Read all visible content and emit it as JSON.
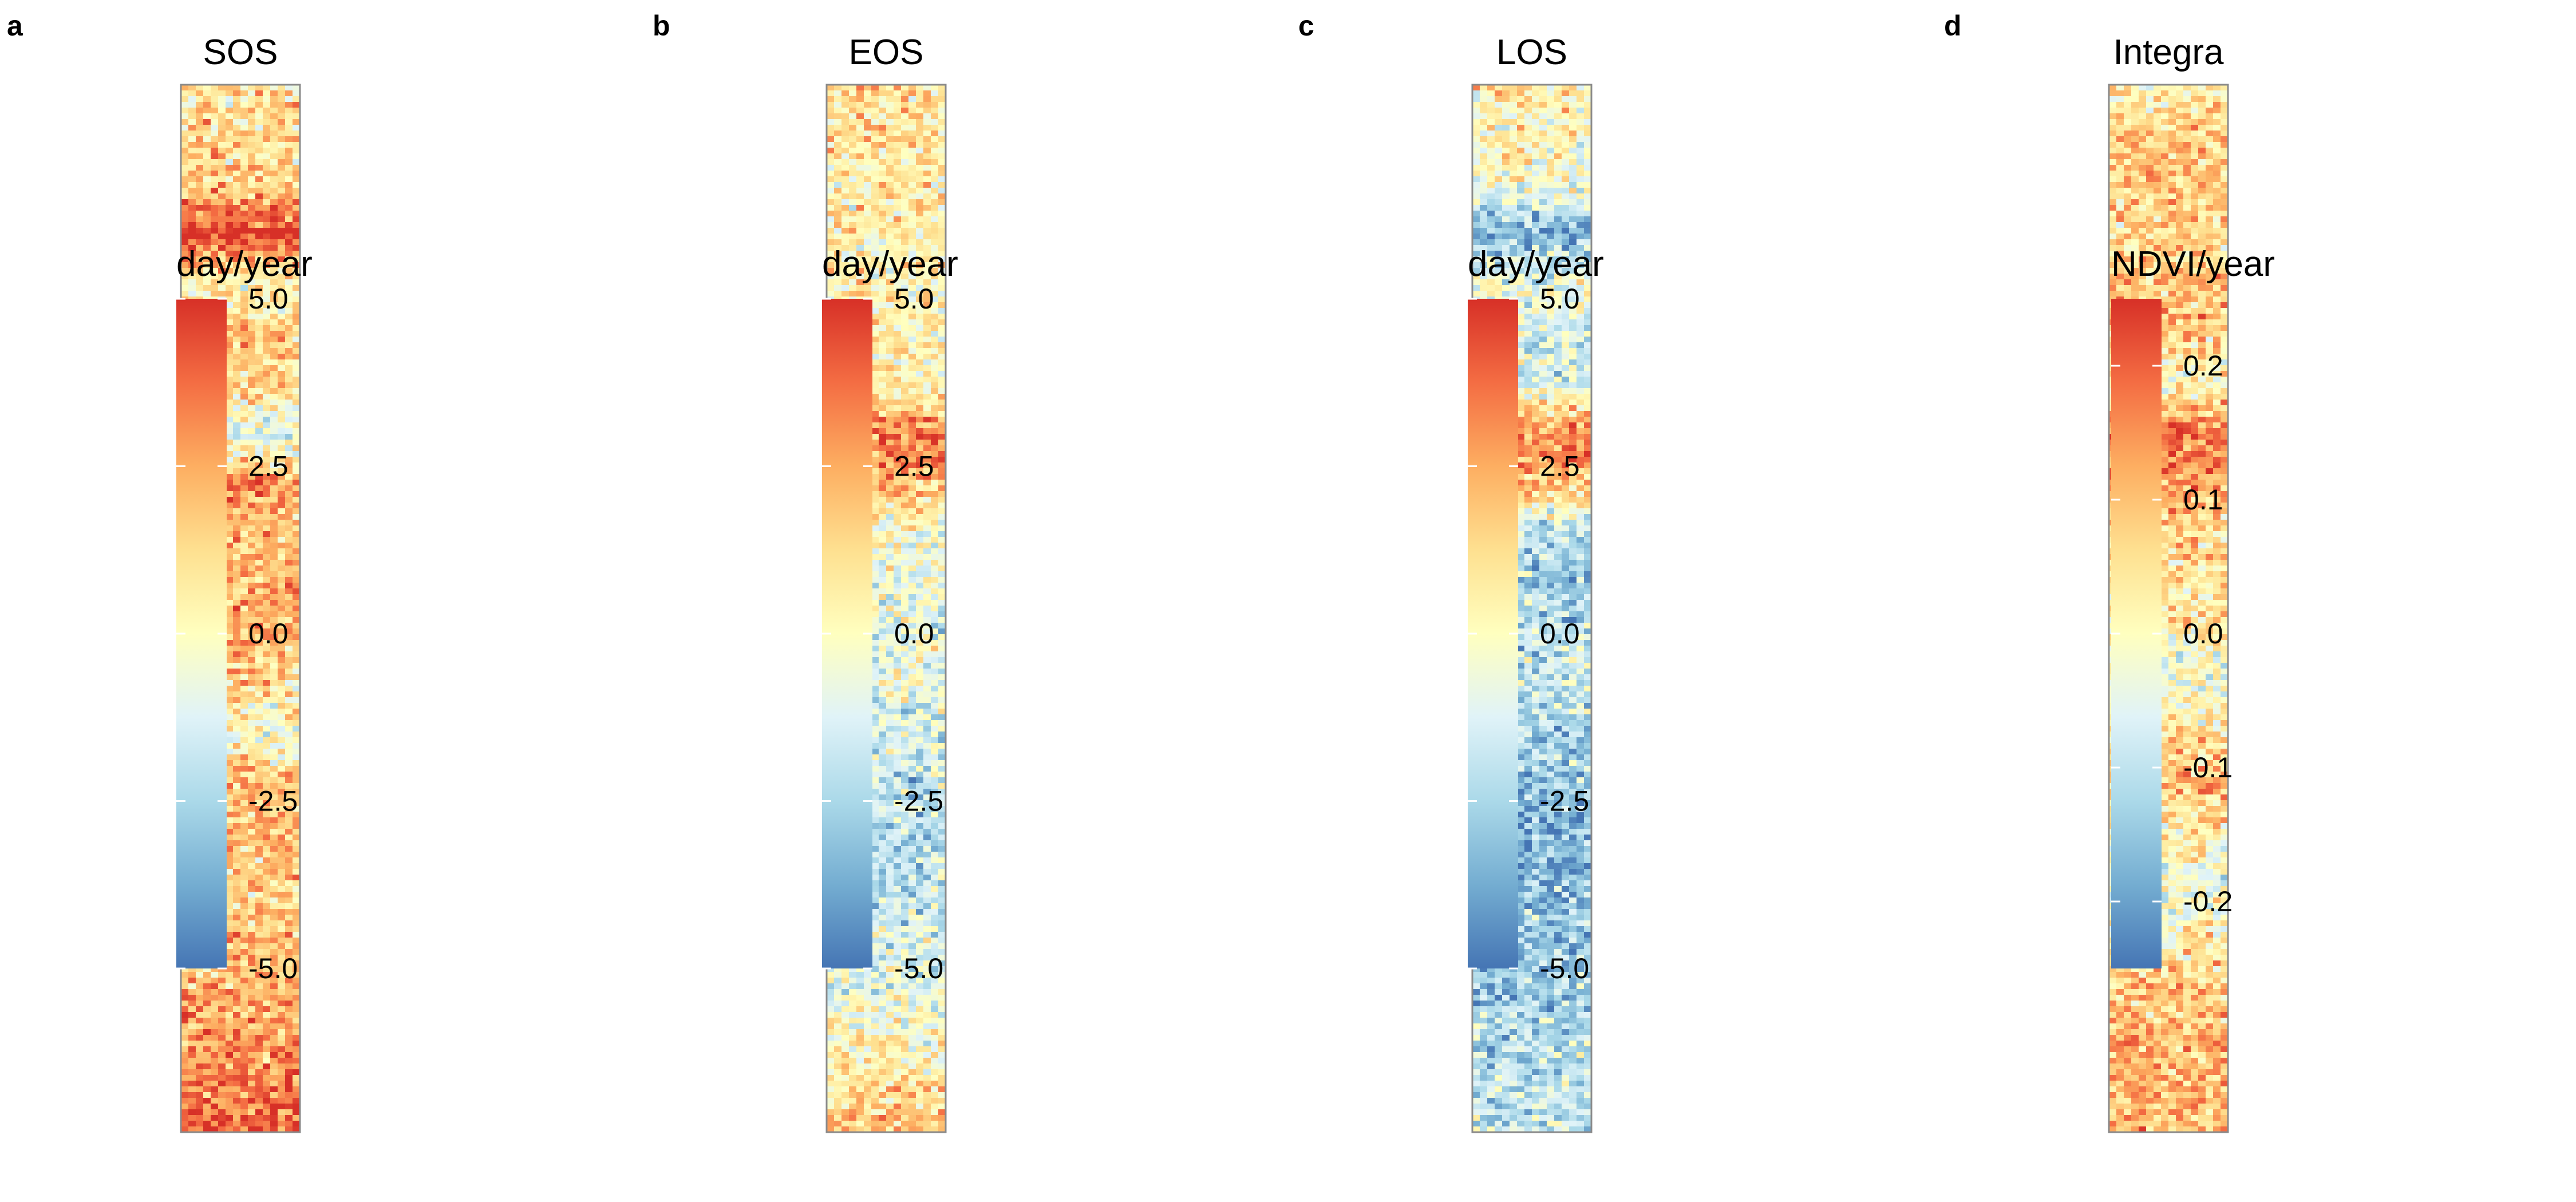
{
  "colors": {
    "diverging_scale": [
      "#4575b4",
      "#74add1",
      "#abd9e9",
      "#e0f3f8",
      "#ffffbf",
      "#fee090",
      "#fdae61",
      "#f46d43",
      "#d73027"
    ],
    "frame": "#8a8a8a",
    "text": "#000000",
    "background": "#ffffff"
  },
  "chart_data": [
    {
      "type": "heatmap",
      "panel": "a",
      "title": "SOS",
      "legend_title": "day/year",
      "legend_range": [
        -5.0,
        5.0
      ],
      "legend_ticks": [
        5.0,
        2.5,
        0.0,
        -2.5,
        -5.0
      ],
      "legend_tick_labels": [
        "5.0",
        "2.5",
        "0.0",
        "-2.5",
        "-5.0"
      ],
      "profile_from_top": [
        1.0,
        1.2,
        1.5,
        4.8,
        0.2,
        2.0,
        1.6,
        -1.5,
        3.2,
        1.8,
        2.2,
        2.4,
        1.4,
        -0.5,
        2.0,
        1.8,
        1.6,
        2.0,
        2.2,
        2.6,
        3.2,
        4.0
      ]
    },
    {
      "type": "heatmap",
      "panel": "b",
      "title": "EOS",
      "legend_title": "day/year",
      "legend_range": [
        -5.0,
        5.0
      ],
      "legend_ticks": [
        5.0,
        2.5,
        0.0,
        -2.5,
        -5.0
      ],
      "legend_tick_labels": [
        "5.0",
        "2.5",
        "0.0",
        "-2.5",
        "-5.0"
      ],
      "profile_from_top": [
        1.2,
        1.0,
        0.8,
        0.5,
        0.2,
        0.6,
        0.4,
        3.8,
        2.2,
        -0.4,
        -0.8,
        -1.0,
        -0.8,
        -1.4,
        -1.8,
        -2.4,
        -2.0,
        -1.6,
        -1.2,
        -0.2,
        1.0,
        1.8
      ]
    },
    {
      "type": "heatmap",
      "panel": "c",
      "title": "LOS",
      "legend_title": "day/year",
      "legend_range": [
        -5.0,
        5.0
      ],
      "legend_ticks": [
        5.0,
        2.5,
        0.0,
        -2.5,
        -5.0
      ],
      "legend_tick_labels": [
        "5.0",
        "2.5",
        "0.0",
        "-2.5",
        "-5.0"
      ],
      "profile_from_top": [
        1.0,
        0.2,
        -0.5,
        -3.5,
        -0.6,
        -1.2,
        -1.8,
        3.5,
        2.0,
        -2.4,
        -2.6,
        -2.2,
        -1.8,
        -2.6,
        -3.2,
        -3.6,
        -3.4,
        -3.2,
        -3.0,
        -2.4,
        -2.0,
        -1.6
      ]
    },
    {
      "type": "heatmap",
      "panel": "d",
      "title": "Integra",
      "legend_title": "NDVI/year",
      "legend_range": [
        -0.25,
        0.25
      ],
      "legend_ticks": [
        0.2,
        0.1,
        0.0,
        -0.1,
        -0.2
      ],
      "legend_tick_labels": [
        "0.2",
        "0.1",
        "0.0",
        "-0.1",
        "-0.2"
      ],
      "profile_from_top": [
        0.02,
        0.08,
        0.1,
        0.06,
        0.1,
        0.08,
        0.0,
        0.18,
        0.15,
        0.06,
        0.04,
        0.02,
        -0.02,
        0.06,
        0.1,
        0.04,
        -0.04,
        0.02,
        0.08,
        0.1,
        0.12,
        0.1
      ]
    }
  ]
}
